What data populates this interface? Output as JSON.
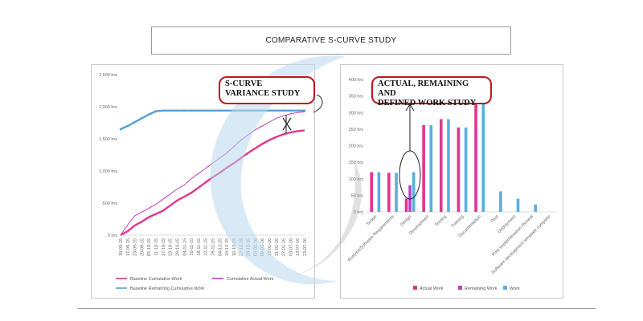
{
  "page_title": "COMPARATIVE S-CURVE STUDY",
  "callouts": {
    "scurve": [
      "S-CURVE",
      "VARIANCE STUDY"
    ],
    "work": [
      "ACTUAL, REMAINING AND",
      "DEFINED WORK STUDY"
    ]
  },
  "colors": {
    "baseline_cumulative": "#e0358f",
    "cumulative_actual": "#c03cc8",
    "baseline_remaining": "#5a9fd4",
    "actual_work": "#e0358f",
    "remaining_work": "#c03cc8",
    "work": "#5aaee0",
    "callout_border": "#c0161c"
  },
  "chart_data": [
    {
      "type": "line",
      "x": [
        "10-09-15",
        "17-09-15",
        "23-09-15",
        "29-09-15",
        "05-10-15",
        "11-10-15",
        "17-10-15",
        "23-10-15",
        "29-10-15",
        "04-11-15",
        "10-11-15",
        "16-11-15",
        "22-11-15",
        "28-11-15",
        "04-12-15",
        "10-12-15",
        "16-12-15",
        "22-12-15",
        "28-12-15",
        "03-01-16",
        "09-01-16",
        "15-01-16",
        "21-01-16",
        "27-01-16",
        "03-07-16",
        "13-07-16",
        "23-07-16"
      ],
      "y_ticks": [
        "0 hrs",
        "500 hrs",
        "1,000 hrs",
        "1,500 hrs",
        "2,000 hrs",
        "2,500 hrs"
      ],
      "ylim": [
        0,
        2500
      ],
      "series": [
        {
          "name": "Baseline Cumulative Work",
          "values": [
            0,
            60,
            150,
            210,
            280,
            330,
            380,
            460,
            540,
            600,
            660,
            740,
            820,
            900,
            970,
            1050,
            1120,
            1200,
            1280,
            1350,
            1420,
            1480,
            1530,
            1570,
            1600,
            1620,
            1630
          ]
        },
        {
          "name": "Cumulative Actual Work",
          "values": [
            0,
            160,
            300,
            360,
            420,
            480,
            560,
            640,
            720,
            780,
            880,
            960,
            1040,
            1120,
            1200,
            1280,
            1380,
            1480,
            1560,
            1640,
            1700,
            1760,
            1820,
            1860,
            1890,
            1910,
            1920
          ]
        },
        {
          "name": "Baseline Remaining Cumulative Work",
          "values": [
            1650,
            1700,
            1760,
            1820,
            1880,
            1930,
            1940,
            1940,
            1940,
            1940,
            1940,
            1940,
            1940,
            1940,
            1940,
            1940,
            1940,
            1940,
            1940,
            1940,
            1940,
            1940,
            1940,
            1940,
            1940,
            1940,
            1940
          ]
        }
      ],
      "legend_position": "bottom"
    },
    {
      "type": "bar",
      "categories": [
        "Scope",
        "Analysis/Software Requirements",
        "Design",
        "Development",
        "Testing",
        "Training",
        "Documentation",
        "Pilot",
        "Deployment",
        "Post Implementation Review",
        "Software development template complete"
      ],
      "y_ticks": [
        "0 hrs",
        "50 hrs",
        "100 hrs",
        "150 hrs",
        "200 hrs",
        "250 hrs",
        "300 hrs",
        "350 hrs",
        "400 hrs"
      ],
      "ylim": [
        0,
        400
      ],
      "series": [
        {
          "name": "Actual Work",
          "values": [
            120,
            118,
            40,
            262,
            280,
            255,
            330,
            0,
            0,
            0,
            0
          ]
        },
        {
          "name": "Remaining Work",
          "values": [
            0,
            0,
            80,
            0,
            0,
            0,
            0,
            0,
            0,
            0,
            0
          ]
        },
        {
          "name": "Work",
          "values": [
            120,
            118,
            120,
            262,
            280,
            255,
            340,
            62,
            40,
            22,
            0
          ]
        }
      ],
      "legend_position": "bottom"
    }
  ]
}
